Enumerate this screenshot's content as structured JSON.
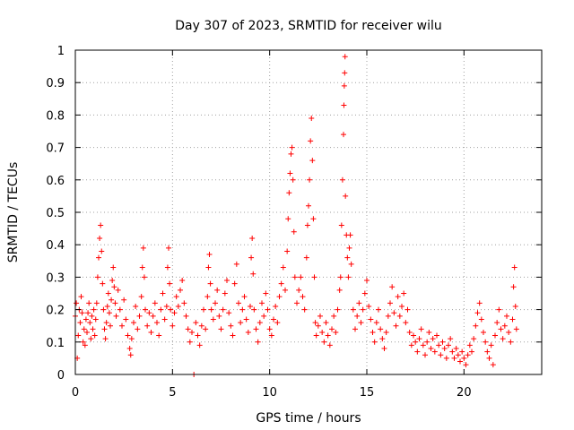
{
  "chart_data": {
    "type": "scatter",
    "title": "Day 307 of 2023, SRMTID for receiver wilu",
    "xlabel": "GPS time / hours",
    "ylabel": "SRMTID / TECUs",
    "xlim": [
      0,
      24
    ],
    "ylim": [
      0,
      1
    ],
    "xticks": [
      0,
      5,
      10,
      15,
      20
    ],
    "xtick_labels": [
      "0",
      "5",
      "10",
      "15",
      "20"
    ],
    "yticks": [
      0,
      0.1,
      0.2,
      0.3,
      0.4,
      0.5,
      0.6,
      0.7,
      0.8,
      0.9,
      1
    ],
    "ytick_labels": [
      "0",
      "0.1",
      "0.2",
      "0.3",
      "0.4",
      "0.5",
      "0.6",
      "0.7",
      "0.8",
      "0.9",
      "1"
    ],
    "grid": true,
    "marker": "+",
    "marker_color": "#ff0000",
    "series": [
      {
        "name": "SRMTID",
        "points": [
          [
            0.0,
            0.18
          ],
          [
            0.05,
            0.22
          ],
          [
            0.1,
            0.05
          ],
          [
            0.15,
            0.12
          ],
          [
            0.2,
            0.2
          ],
          [
            0.25,
            0.16
          ],
          [
            0.3,
            0.24
          ],
          [
            0.35,
            0.19
          ],
          [
            0.4,
            0.1
          ],
          [
            0.45,
            0.14
          ],
          [
            0.5,
            0.09
          ],
          [
            0.55,
            0.17
          ],
          [
            0.6,
            0.13
          ],
          [
            0.65,
            0.19
          ],
          [
            0.7,
            0.22
          ],
          [
            0.75,
            0.16
          ],
          [
            0.8,
            0.11
          ],
          [
            0.85,
            0.18
          ],
          [
            0.9,
            0.14
          ],
          [
            0.95,
            0.2
          ],
          [
            1.0,
            0.12
          ],
          [
            1.05,
            0.17
          ],
          [
            1.1,
            0.22
          ],
          [
            1.15,
            0.3
          ],
          [
            1.2,
            0.36
          ],
          [
            1.25,
            0.42
          ],
          [
            1.3,
            0.46
          ],
          [
            1.35,
            0.38
          ],
          [
            1.4,
            0.28
          ],
          [
            1.45,
            0.2
          ],
          [
            1.5,
            0.14
          ],
          [
            1.55,
            0.11
          ],
          [
            1.6,
            0.16
          ],
          [
            1.65,
            0.21
          ],
          [
            1.7,
            0.25
          ],
          [
            1.75,
            0.19
          ],
          [
            1.8,
            0.15
          ],
          [
            1.85,
            0.23
          ],
          [
            1.9,
            0.29
          ],
          [
            1.95,
            0.33
          ],
          [
            2.0,
            0.27
          ],
          [
            2.05,
            0.22
          ],
          [
            2.1,
            0.18
          ],
          [
            2.2,
            0.26
          ],
          [
            2.3,
            0.2
          ],
          [
            2.4,
            0.15
          ],
          [
            2.5,
            0.23
          ],
          [
            2.6,
            0.17
          ],
          [
            2.7,
            0.12
          ],
          [
            2.8,
            0.08
          ],
          [
            2.85,
            0.06
          ],
          [
            2.9,
            0.11
          ],
          [
            3.0,
            0.16
          ],
          [
            3.1,
            0.21
          ],
          [
            3.2,
            0.14
          ],
          [
            3.3,
            0.18
          ],
          [
            3.4,
            0.24
          ],
          [
            3.45,
            0.33
          ],
          [
            3.5,
            0.39
          ],
          [
            3.55,
            0.3
          ],
          [
            3.6,
            0.2
          ],
          [
            3.7,
            0.15
          ],
          [
            3.8,
            0.19
          ],
          [
            3.9,
            0.13
          ],
          [
            4.0,
            0.18
          ],
          [
            4.1,
            0.22
          ],
          [
            4.2,
            0.16
          ],
          [
            4.3,
            0.12
          ],
          [
            4.4,
            0.2
          ],
          [
            4.5,
            0.25
          ],
          [
            4.6,
            0.17
          ],
          [
            4.7,
            0.21
          ],
          [
            4.75,
            0.33
          ],
          [
            4.8,
            0.39
          ],
          [
            4.85,
            0.28
          ],
          [
            4.9,
            0.2
          ],
          [
            5.0,
            0.15
          ],
          [
            5.1,
            0.19
          ],
          [
            5.2,
            0.24
          ],
          [
            5.3,
            0.21
          ],
          [
            5.4,
            0.26
          ],
          [
            5.5,
            0.29
          ],
          [
            5.6,
            0.22
          ],
          [
            5.7,
            0.18
          ],
          [
            5.8,
            0.14
          ],
          [
            5.9,
            0.1
          ],
          [
            6.0,
            0.13
          ],
          [
            6.1,
            0.0
          ],
          [
            6.2,
            0.16
          ],
          [
            6.3,
            0.12
          ],
          [
            6.4,
            0.09
          ],
          [
            6.5,
            0.15
          ],
          [
            6.6,
            0.2
          ],
          [
            6.7,
            0.14
          ],
          [
            6.8,
            0.24
          ],
          [
            6.85,
            0.33
          ],
          [
            6.9,
            0.37
          ],
          [
            6.95,
            0.28
          ],
          [
            7.0,
            0.2
          ],
          [
            7.1,
            0.17
          ],
          [
            7.2,
            0.22
          ],
          [
            7.3,
            0.26
          ],
          [
            7.4,
            0.18
          ],
          [
            7.5,
            0.14
          ],
          [
            7.6,
            0.2
          ],
          [
            7.7,
            0.25
          ],
          [
            7.8,
            0.29
          ],
          [
            7.9,
            0.19
          ],
          [
            8.0,
            0.15
          ],
          [
            8.1,
            0.12
          ],
          [
            8.2,
            0.28
          ],
          [
            8.3,
            0.34
          ],
          [
            8.4,
            0.22
          ],
          [
            8.5,
            0.16
          ],
          [
            8.6,
            0.2
          ],
          [
            8.7,
            0.24
          ],
          [
            8.8,
            0.17
          ],
          [
            8.9,
            0.13
          ],
          [
            9.0,
            0.21
          ],
          [
            9.05,
            0.36
          ],
          [
            9.1,
            0.42
          ],
          [
            9.15,
            0.31
          ],
          [
            9.2,
            0.2
          ],
          [
            9.3,
            0.14
          ],
          [
            9.4,
            0.1
          ],
          [
            9.5,
            0.16
          ],
          [
            9.6,
            0.22
          ],
          [
            9.7,
            0.18
          ],
          [
            9.8,
            0.25
          ],
          [
            9.9,
            0.2
          ],
          [
            10.0,
            0.14
          ],
          [
            10.1,
            0.12
          ],
          [
            10.2,
            0.17
          ],
          [
            10.3,
            0.21
          ],
          [
            10.4,
            0.16
          ],
          [
            10.5,
            0.24
          ],
          [
            10.6,
            0.28
          ],
          [
            10.7,
            0.33
          ],
          [
            10.8,
            0.26
          ],
          [
            10.9,
            0.38
          ],
          [
            10.95,
            0.48
          ],
          [
            11.0,
            0.56
          ],
          [
            11.05,
            0.62
          ],
          [
            11.1,
            0.68
          ],
          [
            11.15,
            0.7
          ],
          [
            11.2,
            0.6
          ],
          [
            11.25,
            0.44
          ],
          [
            11.3,
            0.3
          ],
          [
            11.4,
            0.22
          ],
          [
            11.5,
            0.26
          ],
          [
            11.6,
            0.3
          ],
          [
            11.7,
            0.24
          ],
          [
            11.8,
            0.2
          ],
          [
            11.9,
            0.36
          ],
          [
            11.95,
            0.46
          ],
          [
            12.0,
            0.52
          ],
          [
            12.05,
            0.6
          ],
          [
            12.1,
            0.72
          ],
          [
            12.15,
            0.79
          ],
          [
            12.2,
            0.66
          ],
          [
            12.25,
            0.48
          ],
          [
            12.3,
            0.3
          ],
          [
            12.35,
            0.16
          ],
          [
            12.4,
            0.12
          ],
          [
            12.5,
            0.15
          ],
          [
            12.6,
            0.18
          ],
          [
            12.7,
            0.13
          ],
          [
            12.8,
            0.1
          ],
          [
            12.9,
            0.16
          ],
          [
            13.0,
            0.12
          ],
          [
            13.1,
            0.09
          ],
          [
            13.2,
            0.14
          ],
          [
            13.3,
            0.18
          ],
          [
            13.4,
            0.13
          ],
          [
            13.5,
            0.2
          ],
          [
            13.6,
            0.26
          ],
          [
            13.65,
            0.3
          ],
          [
            13.7,
            0.46
          ],
          [
            13.75,
            0.6
          ],
          [
            13.8,
            0.74
          ],
          [
            13.82,
            0.83
          ],
          [
            13.84,
            0.89
          ],
          [
            13.86,
            0.93
          ],
          [
            13.88,
            0.98
          ],
          [
            13.9,
            0.55
          ],
          [
            13.95,
            0.43
          ],
          [
            14.0,
            0.36
          ],
          [
            14.05,
            0.3
          ],
          [
            14.1,
            0.39
          ],
          [
            14.15,
            0.43
          ],
          [
            14.2,
            0.34
          ],
          [
            14.3,
            0.2
          ],
          [
            14.4,
            0.14
          ],
          [
            14.5,
            0.18
          ],
          [
            14.6,
            0.22
          ],
          [
            14.7,
            0.16
          ],
          [
            14.8,
            0.2
          ],
          [
            14.9,
            0.25
          ],
          [
            15.0,
            0.29
          ],
          [
            15.1,
            0.21
          ],
          [
            15.2,
            0.17
          ],
          [
            15.3,
            0.13
          ],
          [
            15.4,
            0.1
          ],
          [
            15.5,
            0.16
          ],
          [
            15.6,
            0.2
          ],
          [
            15.7,
            0.14
          ],
          [
            15.8,
            0.11
          ],
          [
            15.9,
            0.08
          ],
          [
            16.0,
            0.13
          ],
          [
            16.1,
            0.18
          ],
          [
            16.2,
            0.22
          ],
          [
            16.3,
            0.27
          ],
          [
            16.4,
            0.19
          ],
          [
            16.5,
            0.15
          ],
          [
            16.6,
            0.24
          ],
          [
            16.7,
            0.18
          ],
          [
            16.8,
            0.21
          ],
          [
            16.9,
            0.25
          ],
          [
            17.0,
            0.16
          ],
          [
            17.1,
            0.2
          ],
          [
            17.2,
            0.13
          ],
          [
            17.3,
            0.09
          ],
          [
            17.4,
            0.12
          ],
          [
            17.5,
            0.1
          ],
          [
            17.6,
            0.07
          ],
          [
            17.7,
            0.11
          ],
          [
            17.8,
            0.14
          ],
          [
            17.9,
            0.09
          ],
          [
            18.0,
            0.06
          ],
          [
            18.1,
            0.1
          ],
          [
            18.2,
            0.13
          ],
          [
            18.3,
            0.08
          ],
          [
            18.4,
            0.11
          ],
          [
            18.5,
            0.07
          ],
          [
            18.6,
            0.12
          ],
          [
            18.7,
            0.09
          ],
          [
            18.8,
            0.06
          ],
          [
            18.9,
            0.1
          ],
          [
            19.0,
            0.08
          ],
          [
            19.1,
            0.05
          ],
          [
            19.2,
            0.09
          ],
          [
            19.3,
            0.11
          ],
          [
            19.4,
            0.07
          ],
          [
            19.5,
            0.05
          ],
          [
            19.6,
            0.08
          ],
          [
            19.7,
            0.06
          ],
          [
            19.8,
            0.04
          ],
          [
            19.9,
            0.07
          ],
          [
            20.0,
            0.05
          ],
          [
            20.1,
            0.03
          ],
          [
            20.2,
            0.06
          ],
          [
            20.3,
            0.09
          ],
          [
            20.4,
            0.07
          ],
          [
            20.5,
            0.11
          ],
          [
            20.6,
            0.15
          ],
          [
            20.7,
            0.19
          ],
          [
            20.8,
            0.22
          ],
          [
            20.9,
            0.17
          ],
          [
            21.0,
            0.13
          ],
          [
            21.1,
            0.1
          ],
          [
            21.2,
            0.07
          ],
          [
            21.3,
            0.05
          ],
          [
            21.4,
            0.09
          ],
          [
            21.5,
            0.03
          ],
          [
            21.6,
            0.12
          ],
          [
            21.7,
            0.16
          ],
          [
            21.8,
            0.2
          ],
          [
            21.9,
            0.14
          ],
          [
            22.0,
            0.11
          ],
          [
            22.1,
            0.15
          ],
          [
            22.2,
            0.18
          ],
          [
            22.3,
            0.13
          ],
          [
            22.4,
            0.1
          ],
          [
            22.5,
            0.17
          ],
          [
            22.55,
            0.27
          ],
          [
            22.6,
            0.33
          ],
          [
            22.65,
            0.21
          ],
          [
            22.7,
            0.14
          ]
        ]
      }
    ]
  }
}
